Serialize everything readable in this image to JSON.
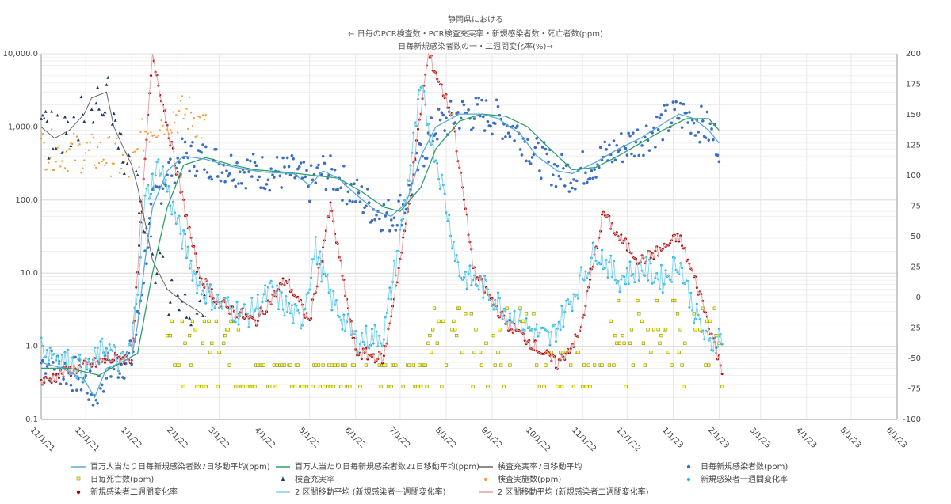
{
  "chart_data": {
    "type": "scatter",
    "title": [
      "静岡県における",
      "← 日毎のPCR検査数・PCR検査充実率・新規感染者数・死亡者数(ppm)",
      "日毎新規感染者数の一・二週間変化率(%)→"
    ],
    "x_ticks": [
      "11/1/21",
      "12/1/21",
      "1/1/22",
      "2/1/22",
      "3/1/22",
      "4/1/22",
      "5/1/22",
      "6/1/22",
      "7/1/22",
      "8/1/22",
      "9/1/22",
      "10/1/22",
      "11/1/22",
      "12/1/22",
      "1/1/23",
      "2/1/23",
      "3/1/23",
      "4/1/23",
      "5/1/23",
      "6/1/23"
    ],
    "x_range": [
      "11/1/21",
      "6/1/23"
    ],
    "y_left": {
      "scale": "log",
      "range": [
        0.1,
        10000
      ],
      "ticks": [
        "0.1",
        "1.0",
        "10.0",
        "100.0",
        "1,000.0",
        "10,000.0"
      ]
    },
    "y_right": {
      "scale": "linear",
      "range": [
        -100,
        200
      ],
      "ticks": [
        "-100",
        "-75",
        "-50",
        "-25",
        "0",
        "25",
        "50",
        "75",
        "100",
        "125",
        "150",
        "175",
        "200"
      ]
    },
    "grid": true,
    "legend_position": "bottom",
    "series": [
      {
        "name": "百万人当たり日毎新規感染者数7日移動平均(ppm)",
        "axis": "left",
        "kind": "line",
        "color": "#5aa9dd",
        "points": [
          [
            "11/1/21",
            0.6
          ],
          [
            "11/15/21",
            0.5
          ],
          [
            "11/30/21",
            0.35
          ],
          [
            "12/7/21",
            0.2
          ],
          [
            "12/15/21",
            0.5
          ],
          [
            "12/25/21",
            0.6
          ],
          [
            "1/1/22",
            0.7
          ],
          [
            "1/5/22",
            2
          ],
          [
            "1/10/22",
            15
          ],
          [
            "1/15/22",
            80
          ],
          [
            "1/25/22",
            250
          ],
          [
            "2/5/22",
            400
          ],
          [
            "2/20/22",
            360
          ],
          [
            "3/5/22",
            300
          ],
          [
            "3/20/22",
            260
          ],
          [
            "4/1/22",
            240
          ],
          [
            "4/20/22",
            230
          ],
          [
            "5/1/22",
            160
          ],
          [
            "5/10/22",
            250
          ],
          [
            "5/20/22",
            200
          ],
          [
            "6/1/22",
            120
          ],
          [
            "6/15/22",
            70
          ],
          [
            "6/25/22",
            60
          ],
          [
            "7/5/22",
            90
          ],
          [
            "7/15/22",
            400
          ],
          [
            "7/25/22",
            1000
          ],
          [
            "8/10/22",
            1500
          ],
          [
            "8/25/22",
            1500
          ],
          [
            "9/5/22",
            1300
          ],
          [
            "9/20/22",
            800
          ],
          [
            "10/1/22",
            400
          ],
          [
            "10/15/22",
            250
          ],
          [
            "10/25/22",
            230
          ],
          [
            "11/10/22",
            330
          ],
          [
            "11/25/22",
            500
          ],
          [
            "12/10/22",
            700
          ],
          [
            "12/25/22",
            1100
          ],
          [
            "1/5/23",
            1500
          ],
          [
            "1/15/23",
            1300
          ],
          [
            "1/25/23",
            900
          ],
          [
            "2/1/23",
            600
          ]
        ]
      },
      {
        "name": "百万人当たり日毎新規感染者数21日移動平均(ppm)",
        "axis": "left",
        "kind": "line",
        "color": "#2e9e6b",
        "points": [
          [
            "11/1/21",
            0.5
          ],
          [
            "11/20/21",
            0.5
          ],
          [
            "12/10/21",
            0.4
          ],
          [
            "12/25/21",
            0.6
          ],
          [
            "1/5/22",
            0.8
          ],
          [
            "1/15/22",
            10
          ],
          [
            "1/25/22",
            80
          ],
          [
            "2/5/22",
            300
          ],
          [
            "2/20/22",
            380
          ],
          [
            "3/10/22",
            300
          ],
          [
            "3/25/22",
            260
          ],
          [
            "4/15/22",
            240
          ],
          [
            "5/1/22",
            220
          ],
          [
            "5/20/22",
            200
          ],
          [
            "6/5/22",
            130
          ],
          [
            "6/20/22",
            80
          ],
          [
            "7/1/22",
            70
          ],
          [
            "7/15/22",
            150
          ],
          [
            "7/25/22",
            500
          ],
          [
            "8/10/22",
            1200
          ],
          [
            "8/25/22",
            1500
          ],
          [
            "9/10/22",
            1400
          ],
          [
            "9/25/22",
            1000
          ],
          [
            "10/10/22",
            500
          ],
          [
            "10/25/22",
            260
          ],
          [
            "11/10/22",
            280
          ],
          [
            "11/25/22",
            400
          ],
          [
            "12/10/22",
            600
          ],
          [
            "12/25/22",
            900
          ],
          [
            "1/10/23",
            1300
          ],
          [
            "1/25/23",
            1300
          ],
          [
            "2/1/23",
            900
          ]
        ]
      },
      {
        "name": "検査充実率7日移動平均",
        "axis": "left",
        "kind": "line",
        "color": "#666666",
        "points": [
          [
            "11/1/21",
            1000
          ],
          [
            "11/10/21",
            700
          ],
          [
            "11/20/21",
            900
          ],
          [
            "11/30/21",
            1500
          ],
          [
            "12/5/21",
            2500
          ],
          [
            "12/15/21",
            3000
          ],
          [
            "12/20/21",
            1000
          ],
          [
            "12/25/21",
            600
          ],
          [
            "1/1/22",
            300
          ],
          [
            "1/5/22",
            150
          ],
          [
            "1/10/22",
            50
          ],
          [
            "1/15/22",
            15
          ],
          [
            "1/25/22",
            6
          ],
          [
            "2/5/22",
            4
          ],
          [
            "2/15/22",
            3
          ],
          [
            "2/20/22",
            2.5
          ]
        ]
      },
      {
        "name": "日毎新規感染者数(ppm)",
        "axis": "left",
        "kind": "scatter",
        "color": "#3c6fbf",
        "marker": "circle"
      },
      {
        "name": "日毎死亡数(ppm)",
        "axis": "left",
        "kind": "scatter",
        "color": "#c8c800",
        "marker": "square"
      },
      {
        "name": "検査充実率",
        "axis": "left",
        "kind": "scatter",
        "color": "#1f3864",
        "marker": "triangle"
      },
      {
        "name": "検査実施数(ppm)",
        "axis": "left",
        "kind": "scatter",
        "color": "#f0a040",
        "marker": "dot"
      },
      {
        "name": "新規感染者一週間変化率",
        "axis": "right",
        "kind": "scatter",
        "color": "#29b6e0",
        "marker": "dot"
      },
      {
        "name": "新規感染者二週間変化率",
        "axis": "right",
        "kind": "scatter",
        "color": "#b00000",
        "marker": "dot"
      },
      {
        "name": "2 区間移動平均 (新規感染者一週間変化率)",
        "axis": "right",
        "kind": "line",
        "color": "#7fd4ee"
      },
      {
        "name": "2 区間移動平均 (新規感染者二週間変化率)",
        "axis": "right",
        "kind": "line",
        "color": "#e0a0a0"
      }
    ]
  }
}
